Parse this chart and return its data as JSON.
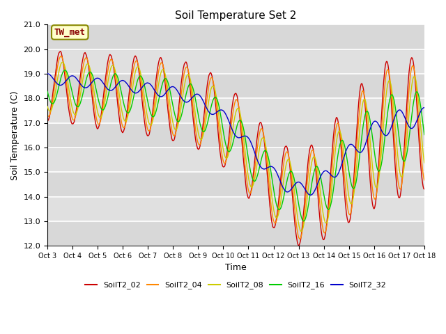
{
  "title": "Soil Temperature Set 2",
  "xlabel": "Time",
  "ylabel": "Soil Temperature (C)",
  "ylim": [
    12.0,
    21.0
  ],
  "yticks": [
    12.0,
    13.0,
    14.0,
    15.0,
    16.0,
    17.0,
    18.0,
    19.0,
    20.0,
    21.0
  ],
  "xtick_labels": [
    "Oct 3",
    "Oct 4",
    "Oct 5",
    "Oct 6",
    "Oct 7",
    "Oct 8",
    "Oct 9",
    "Oct 10",
    "Oct 11",
    "Oct 12",
    "Oct 13",
    "Oct 14",
    "Oct 15",
    "Oct 16",
    "Oct 17",
    "Oct 18"
  ],
  "colors": {
    "SoilT2_02": "#cc0000",
    "SoilT2_04": "#ff8800",
    "SoilT2_08": "#cccc00",
    "SoilT2_16": "#00cc00",
    "SoilT2_32": "#0000cc"
  },
  "annotation_text": "TW_met",
  "annotation_color": "#880000",
  "annotation_bg": "#ffffcc",
  "annotation_border": "#888800",
  "plot_bg_light": "#e8e8e8",
  "plot_bg_dark": "#d8d8d8",
  "n_points": 1440,
  "days": 15
}
